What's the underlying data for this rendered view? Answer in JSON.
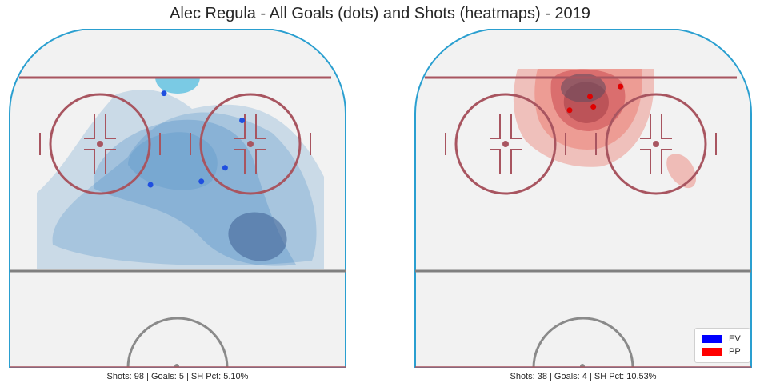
{
  "chart_data": {
    "type": "scatter",
    "title": "Alec Regula - All Goals (dots) and Shots (heatmaps) - 2019",
    "legend": {
      "placement": "bottom-right",
      "entries": [
        {
          "label": "EV",
          "color": "#0000ff"
        },
        {
          "label": "PP",
          "color": "#ff0000"
        }
      ]
    },
    "panels": [
      {
        "situation": "EV",
        "caption": "Shots: 98 | Goals: 5 | SH Pct: 5.10%",
        "heatmap_color": "#2f7bbf",
        "hot_spot_color": "#5bbfe0",
        "goals": [
          {
            "x": 0.46,
            "y": 0.19
          },
          {
            "x": 0.69,
            "y": 0.27
          },
          {
            "x": 0.64,
            "y": 0.41
          },
          {
            "x": 0.57,
            "y": 0.45
          },
          {
            "x": 0.42,
            "y": 0.46
          }
        ]
      },
      {
        "situation": "PP",
        "caption": "Shots: 38 | Goals: 4 | SH Pct: 10.53%",
        "heatmap_color": "#e8402e",
        "hot_spot_color": "#7a4b58",
        "goals": [
          {
            "x": 0.61,
            "y": 0.17
          },
          {
            "x": 0.52,
            "y": 0.2
          },
          {
            "x": 0.53,
            "y": 0.23
          },
          {
            "x": 0.46,
            "y": 0.24
          }
        ]
      }
    ]
  }
}
